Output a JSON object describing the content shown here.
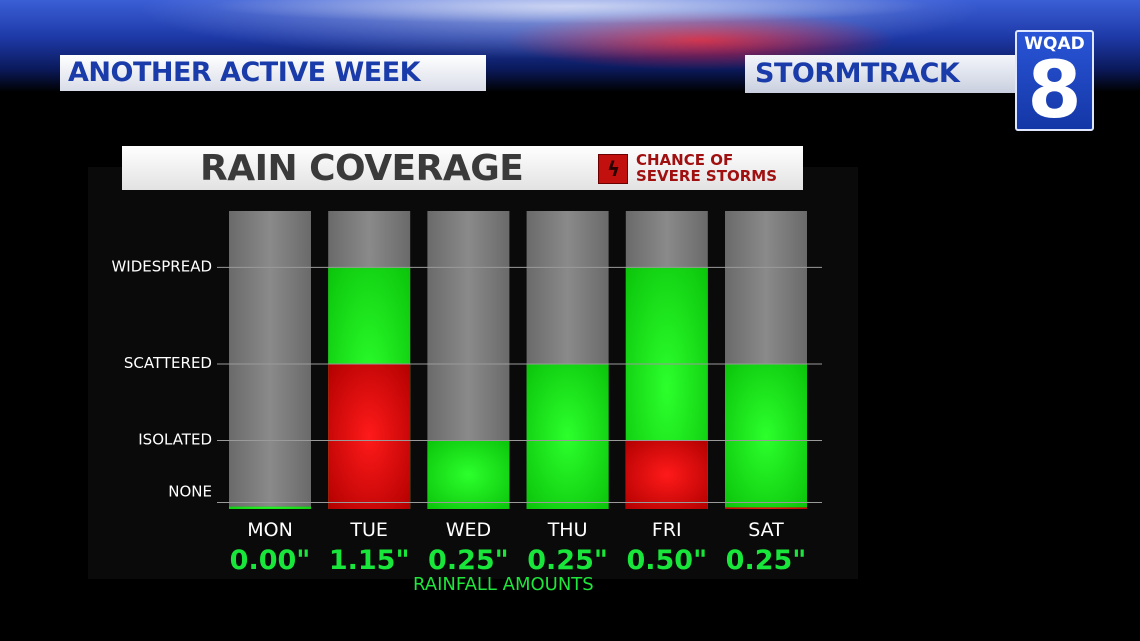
{
  "banner": {
    "headline": "ANOTHER ACTIVE WEEK",
    "brand": "STORMTRACK",
    "logo_call": "WQAD",
    "logo_number": "8"
  },
  "colors": {
    "track": "#808080",
    "rain": "#12e80f",
    "severe": "#e50a0a",
    "amount": "#19e63a",
    "gridline": "#9a9a9a"
  },
  "chart_data": {
    "type": "bar",
    "title": "RAIN COVERAGE",
    "legend": {
      "icon": "lightning-icon",
      "line1": "CHANCE OF",
      "line2": "SEVERE STORMS",
      "color": "#c2100f"
    },
    "y_levels": [
      "NONE",
      "ISOLATED",
      "SCATTERED",
      "WIDESPREAD"
    ],
    "ylim": [
      0,
      3.7
    ],
    "grid": true,
    "categories": [
      "MON",
      "TUE",
      "WED",
      "THU",
      "FRI",
      "SAT"
    ],
    "series": [
      {
        "key": "coverage",
        "values": [
          0.03,
          3,
          0.85,
          1.8,
          3,
          1.8
        ]
      },
      {
        "key": "severe",
        "values": [
          0,
          1.8,
          0,
          0,
          0.85,
          0.02
        ]
      }
    ],
    "rainfall_amounts": [
      "0.00\"",
      "1.15\"",
      "0.25\"",
      "0.25\"",
      "0.50\"",
      "0.25\""
    ],
    "xlabel": "RAINFALL AMOUNTS"
  }
}
